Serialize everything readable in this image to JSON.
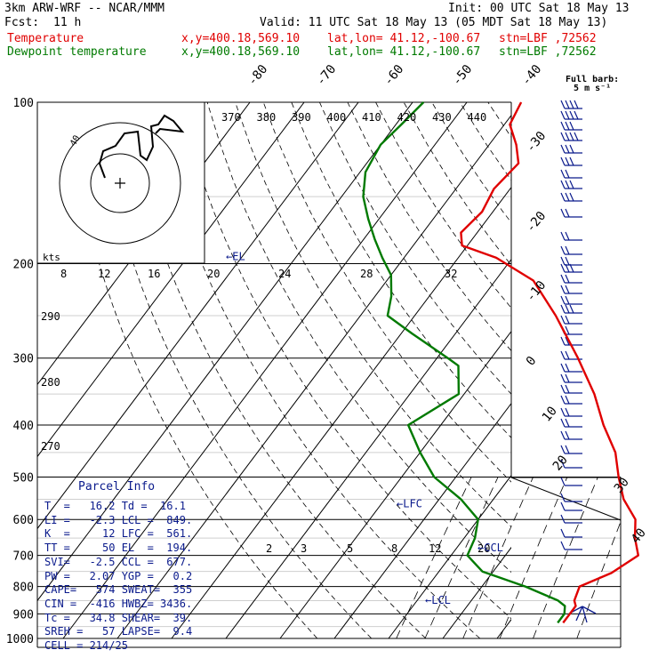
{
  "header": {
    "model": "3km ARW-WRF -- NCAR/MMM",
    "fcst_label": "Fcst:",
    "fcst_value": "11 h",
    "init": "Init: 00 UTC Sat 18 May 13",
    "valid": "Valid: 11 UTC Sat 18 May 13 (05 MDT Sat 18 May 13)",
    "temperature_line": {
      "label": "Temperature",
      "xy": "x,y=400.18,569.10",
      "latlon": "lat,lon= 41.12,-100.67",
      "stn": "stn=LBF ,72562"
    },
    "dewpoint_line": {
      "label": "Dewpoint temperature",
      "xy": "x,y=400.18,569.10",
      "latlon": "lat,lon= 41.12,-100.67",
      "stn": "stn=LBF ,72562"
    }
  },
  "barb_caption": "Full barb:\n5 m s⁻¹",
  "hodograph": {
    "unit_label": "kts",
    "ring_label": "40"
  },
  "parcel_info": {
    "title": "Parcel Info",
    "rows": [
      "T  =   16.2 Td =  16.1",
      "LI =   -2.3 LCL =  849.",
      "K  =     12 LFC =  561.",
      "TT =     50 EL  =  194.",
      "SVI=   -2.5 CCL =  677.",
      "PW =   2.07 YGP =   0.2",
      "CAPE=   574 SWEAT=  355",
      "CIN =  -416 HWBZ= 3436.",
      "Tc =   34.8 SHEAR=  39.",
      "SREH =   57 LAPSE=  9.4",
      "CELL = 214/25"
    ]
  },
  "colors": {
    "temperature": "#e00000",
    "dewpoint": "#007a00",
    "parcel_box": "#0a1a8c",
    "barbs": "#0a1a8c",
    "grid": "#000000",
    "mixing_ratio": "#000000"
  },
  "chart_data": {
    "type": "line",
    "title": "",
    "xlabel": "",
    "ylabel": "",
    "y_axis": {
      "quantity": "pressure (hPa)",
      "scale": "log",
      "range": [
        1000,
        100
      ],
      "ticks": [
        100,
        200,
        300,
        400,
        500,
        600,
        700,
        800,
        900,
        1000
      ]
    },
    "isotherm_labels": [
      "-80",
      "-70",
      "-60",
      "-50",
      "-40",
      "-30",
      "-20",
      "-10",
      "0",
      "10",
      "20",
      "30",
      "40"
    ],
    "theta_labels_top": [
      "370",
      "380",
      "390",
      "400",
      "410",
      "420",
      "430",
      "440"
    ],
    "theta_labels_left": [
      "290",
      "280",
      "270"
    ],
    "mixing_ratio_labels_top": [
      "8",
      "12",
      "16",
      "20",
      "24",
      "28",
      "32"
    ],
    "mixing_ratio_labels_lower": [
      "2",
      "3",
      "5",
      "8",
      "12",
      "20"
    ],
    "series": [
      {
        "name": "Temperature",
        "color": "#e00000",
        "points": [
          [
            935,
            20
          ],
          [
            870,
            20
          ],
          [
            850,
            19
          ],
          [
            800,
            18
          ],
          [
            755,
            22
          ],
          [
            700,
            24.5
          ],
          [
            650,
            21.5
          ],
          [
            600,
            19
          ],
          [
            550,
            14
          ],
          [
            500,
            10
          ],
          [
            450,
            6
          ],
          [
            400,
            0
          ],
          [
            350,
            -6
          ],
          [
            300,
            -14
          ],
          [
            250,
            -24
          ],
          [
            215,
            -33
          ],
          [
            195,
            -43
          ],
          [
            185,
            -51
          ],
          [
            175,
            -53
          ],
          [
            160,
            -52
          ],
          [
            145,
            -53
          ],
          [
            130,
            -52
          ],
          [
            120,
            -55
          ],
          [
            110,
            -59
          ],
          [
            100,
            -60
          ]
        ]
      },
      {
        "name": "Dewpoint temperature",
        "color": "#007a00",
        "points": [
          [
            935,
            19
          ],
          [
            900,
            19
          ],
          [
            870,
            18
          ],
          [
            850,
            16
          ],
          [
            800,
            8
          ],
          [
            750,
            -2
          ],
          [
            700,
            -7
          ],
          [
            650,
            -8
          ],
          [
            600,
            -10
          ],
          [
            550,
            -16
          ],
          [
            500,
            -24
          ],
          [
            450,
            -30
          ],
          [
            400,
            -36
          ],
          [
            350,
            -31
          ],
          [
            310,
            -35
          ],
          [
            300,
            -38
          ],
          [
            270,
            -48
          ],
          [
            250,
            -55
          ],
          [
            230,
            -57
          ],
          [
            210,
            -60
          ],
          [
            195,
            -64
          ],
          [
            180,
            -68
          ],
          [
            165,
            -72
          ],
          [
            150,
            -76
          ],
          [
            135,
            -79
          ],
          [
            120,
            -80
          ],
          [
            110,
            -79
          ],
          [
            100,
            -78
          ]
        ]
      }
    ],
    "annotations": [
      {
        "label": "EL",
        "pressure": 194
      },
      {
        "label": "LFC",
        "pressure": 561
      },
      {
        "label": "CCL",
        "pressure": 677
      },
      {
        "label": "LCL",
        "pressure": 849
      }
    ]
  }
}
